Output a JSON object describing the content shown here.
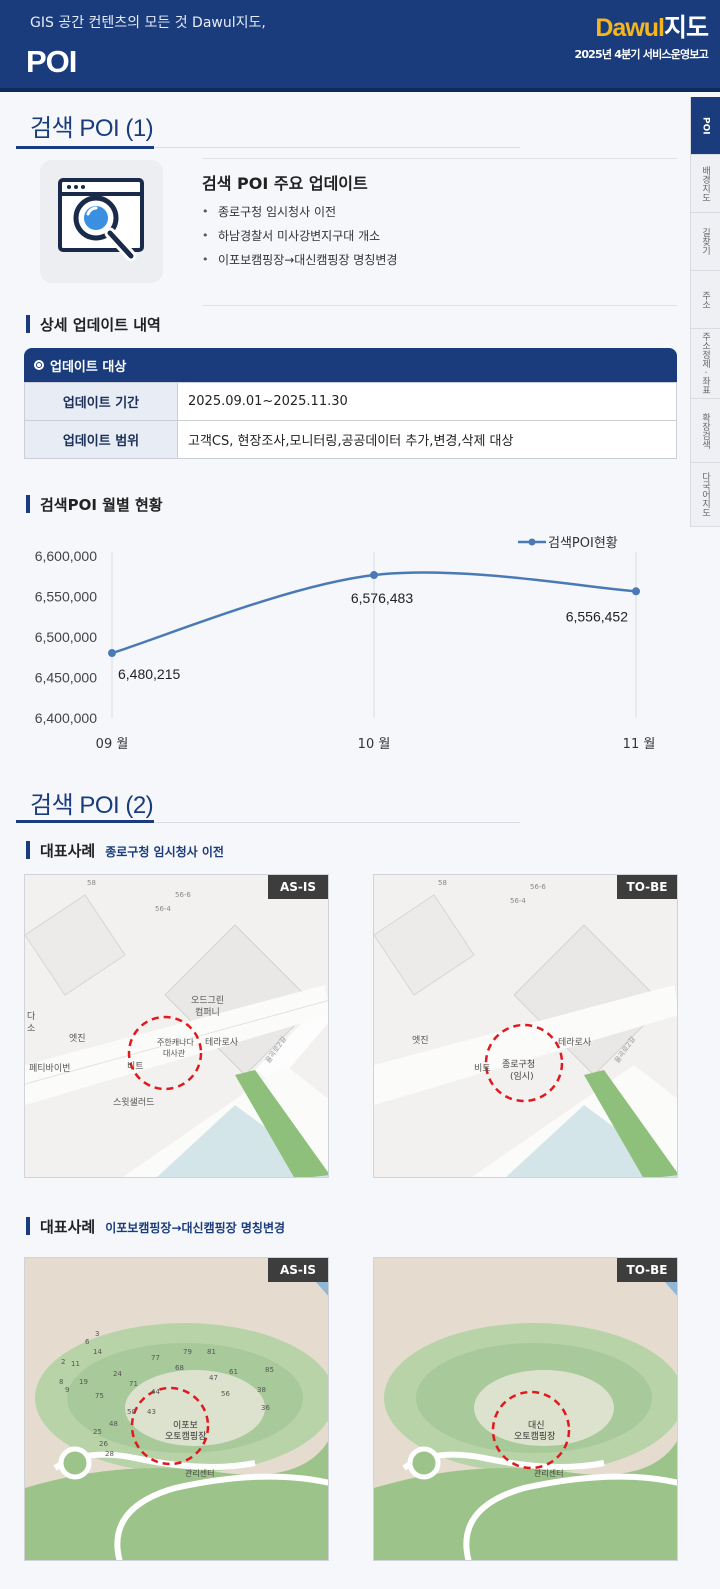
{
  "header": {
    "tagline": "GIS 공간 컨텐츠의 모든 것 Dawul지도,",
    "title": "POI",
    "logo_part1": "Dawul",
    "logo_part2": "지도",
    "report": "2025년 4분기 서비스운영보고"
  },
  "sidenav": {
    "items": [
      "POI",
      "배경지도",
      "길찾기",
      "주소",
      "주소정제 · 좌표",
      "확장검색",
      "다국어지도"
    ]
  },
  "section1": {
    "title": "검색 POI (1)",
    "icon": "search-magnifier-icon",
    "update_title": "검색 POI 주요 업데이트",
    "updates": [
      "종로구청 임시청사 이전",
      "하남경찰서 미사강변지구대 개소",
      "이포보캠핑장→대신캠핑장 명칭변경"
    ]
  },
  "detail": {
    "heading": "상세 업데이트 내역",
    "table_title": "업데이트 대상",
    "rows": [
      {
        "key": "업데이트 기간",
        "value": "2025.09.01~2025.11.30"
      },
      {
        "key": "업데이트 범위",
        "value": "고객CS, 현장조사,모니터링,공공데이터 추가,변경,삭제 대상"
      }
    ]
  },
  "chart_heading": "검색POI 월별 현황",
  "chart_data": {
    "type": "line",
    "title": "",
    "categories": [
      "09 월",
      "10 월",
      "11 월"
    ],
    "series": [
      {
        "name": "검색POI현황",
        "values": [
          6480215,
          6576483,
          6556452
        ]
      }
    ],
    "data_labels": [
      "6,480,215",
      "6,576,483",
      "6,556,452"
    ],
    "ylim": [
      6400000,
      6600000
    ],
    "yticks": [
      "6,400,000",
      "6,450,000",
      "6,500,000",
      "6,550,000",
      "6,600,000"
    ],
    "legend": "top-right",
    "grid": "vertical",
    "color": "#4a7ab5"
  },
  "section2": {
    "title": "검색 POI (2)",
    "case1": {
      "label": "대표사례",
      "subtitle": "종로구청 임시청사 이전",
      "asis_badge": "AS-IS",
      "tobe_badge": "TO-BE",
      "asis_labels": [
        "56-6",
        "56-4",
        "58",
        "오드그린",
        "컴퍼니",
        "다",
        "소",
        "엣진",
        "주한캐나다",
        "대사관",
        "테라로사",
        "페티바이번",
        "비트",
        "스윗샐러드",
        "율곡로2길"
      ],
      "tobe_labels": [
        "56-6",
        "56-4",
        "58",
        "엣진",
        "테라로사",
        "비트",
        "종로구청",
        "(임시)",
        "율곡로2길"
      ]
    },
    "case2": {
      "label": "대표사례",
      "subtitle": "이포보캠핑장→대신캠핑장 명칭변경",
      "asis_badge": "AS-IS",
      "tobe_badge": "TO-BE",
      "asis_labels": [
        "이포보",
        "오토캠핑장",
        "관리센터"
      ],
      "tobe_labels": [
        "대신",
        "오토캠핑장",
        "관리센터"
      ],
      "lot_numbers": [
        "3",
        "6",
        "14",
        "11",
        "19",
        "24",
        "8",
        "77",
        "79",
        "81",
        "68",
        "61",
        "85",
        "50",
        "47",
        "56",
        "38",
        "36",
        "75",
        "71",
        "44",
        "25",
        "48",
        "43",
        "26",
        "28",
        "2",
        "9"
      ]
    }
  },
  "colors": {
    "brand": "#1a3c7c",
    "accent_logo": "#f3b61f",
    "highlight_circle": "#e0191e",
    "line": "#4a7ab5"
  }
}
